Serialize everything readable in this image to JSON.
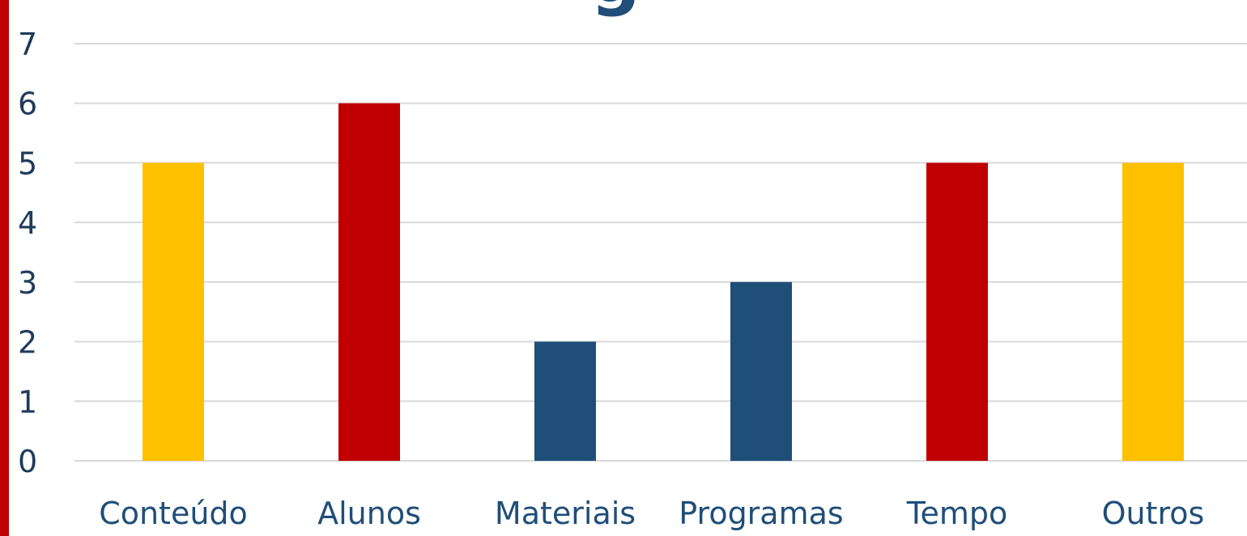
{
  "title_fragment": "g",
  "chart_data": {
    "type": "bar",
    "categories": [
      "Conteúdo",
      "Alunos",
      "Materiais",
      "Programas",
      "Tempo",
      "Outros"
    ],
    "values": [
      5,
      6,
      2,
      3,
      5,
      5
    ],
    "bar_colors": [
      "#ffc000",
      "#c00000",
      "#1f4e79",
      "#1f4e79",
      "#c00000",
      "#ffc000"
    ],
    "title": "",
    "xlabel": "",
    "ylabel": "",
    "ylim": [
      0,
      7
    ],
    "yticks": [
      "0",
      "1",
      "2",
      "3",
      "4",
      "5",
      "6",
      "7"
    ],
    "grid": true,
    "legend": "none"
  },
  "colors": {
    "accent_red": "#c00000",
    "accent_yellow": "#ffc000",
    "accent_blue": "#1f4e79",
    "gridline": "#d9d9d9"
  }
}
